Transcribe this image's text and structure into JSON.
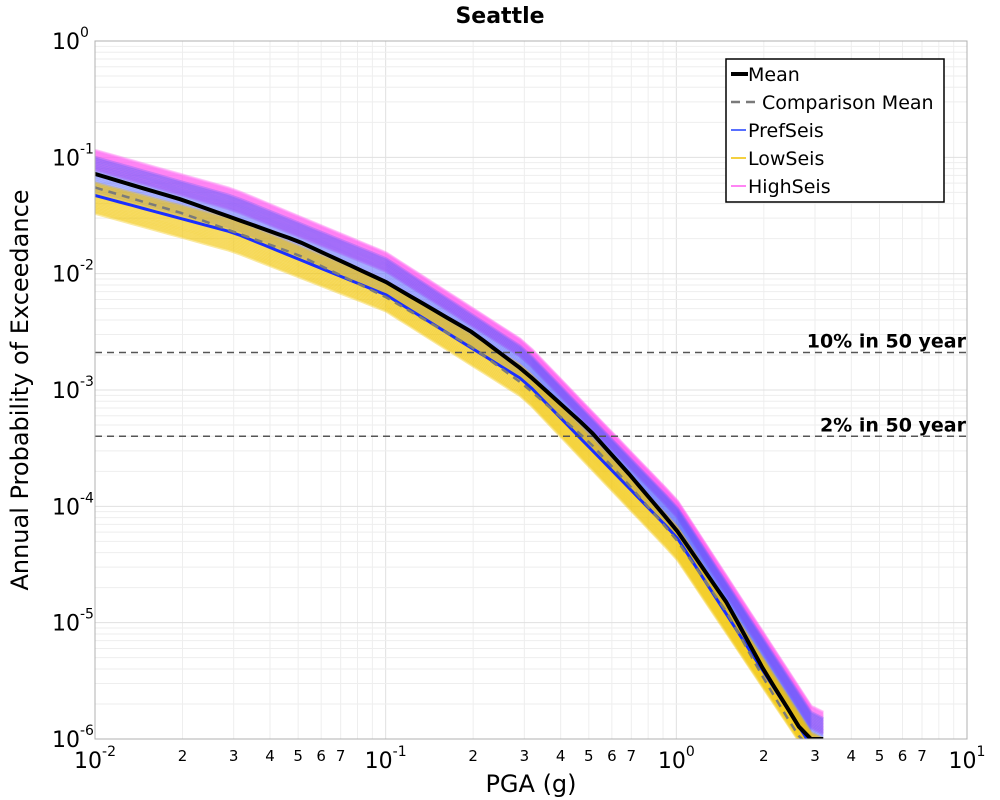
{
  "chart_data": {
    "type": "line",
    "title": "Seattle",
    "xlabel": "PGA (g)",
    "ylabel": "Annual Probability of Exceedance",
    "xscale": "log",
    "yscale": "log",
    "xlim": [
      0.01,
      10
    ],
    "ylim": [
      1e-06,
      1
    ],
    "grid": true,
    "legend_position": "top-right",
    "x_ticks": [
      {
        "base": "10",
        "exp": "-2"
      },
      {
        "base": "10",
        "exp": "-1"
      },
      {
        "base": "10",
        "exp": "0"
      },
      {
        "base": "10",
        "exp": "1"
      }
    ],
    "x_minor_labels": [
      "2",
      "3",
      "4",
      "5",
      "6",
      "7"
    ],
    "y_ticks": [
      {
        "base": "10",
        "exp": "0"
      },
      {
        "base": "10",
        "exp": "-1"
      },
      {
        "base": "10",
        "exp": "-2"
      },
      {
        "base": "10",
        "exp": "-3"
      },
      {
        "base": "10",
        "exp": "-4"
      },
      {
        "base": "10",
        "exp": "-5"
      },
      {
        "base": "10",
        "exp": "-6"
      }
    ],
    "reference_lines": [
      {
        "label": "10% in 50 year",
        "y": 0.0021
      },
      {
        "label": "2% in 50 year",
        "y": 0.0004
      }
    ],
    "series": [
      {
        "name": "Mean",
        "style": "solid",
        "color": "#000000",
        "x": [
          0.01,
          0.02,
          0.05,
          0.1,
          0.2,
          0.3,
          0.5,
          0.7,
          1.0,
          1.5,
          2.0,
          2.5,
          2.8
        ],
        "y": [
          0.072,
          0.043,
          0.019,
          0.0085,
          0.0031,
          0.00145,
          0.00046,
          0.00018,
          6.3e-05,
          1.45e-05,
          3.9e-06,
          1.6e-06,
          1e-06
        ]
      },
      {
        "name": "Comparison Mean",
        "style": "dashed",
        "color": "#7a7a7a",
        "x": [
          0.01,
          0.02,
          0.05,
          0.1,
          0.2,
          0.3,
          0.5,
          0.7,
          1.0,
          1.5,
          2.0,
          2.5,
          2.8
        ],
        "y": [
          0.055,
          0.033,
          0.0145,
          0.0063,
          0.0023,
          0.0011,
          0.00036,
          0.000145,
          5.2e-05,
          1.2e-05,
          3.3e-06,
          1.3e-06,
          8.5e-07
        ]
      },
      {
        "name": "PrefSeis",
        "style": "band",
        "color": "#1f3fff"
      },
      {
        "name": "LowSeis",
        "style": "band",
        "color": "#f0c000"
      },
      {
        "name": "HighSeis",
        "style": "band",
        "color": "#ff5cf0"
      }
    ],
    "bands": {
      "HighSeis": {
        "x": [
          0.01,
          0.03,
          0.1,
          0.3,
          1.0,
          3.0
        ],
        "lo": [
          0.078,
          0.035,
          0.0105,
          0.00185,
          8.3e-05,
          1.1e-06
        ],
        "hi": [
          0.115,
          0.053,
          0.0152,
          0.0026,
          0.000115,
          1.7e-06
        ]
      },
      "PrefSeis": {
        "x": [
          0.01,
          0.03,
          0.1,
          0.3,
          1.0,
          3.0
        ],
        "lo": [
          0.05,
          0.024,
          0.0068,
          0.00125,
          5.8e-05,
          8e-07
        ],
        "hi": [
          0.1,
          0.046,
          0.0135,
          0.00225,
          0.0001,
          1.5e-06
        ]
      },
      "LowSeis": {
        "x": [
          0.01,
          0.03,
          0.1,
          0.3,
          1.0,
          3.0
        ],
        "lo": [
          0.033,
          0.0155,
          0.0048,
          0.00085,
          3.6e-05,
          6e-07
        ],
        "hi": [
          0.06,
          0.029,
          0.0085,
          0.00155,
          6.8e-05,
          1e-06
        ]
      },
      "PrefSeisLine": {
        "x": [
          0.01,
          0.03,
          0.1,
          0.3,
          1.0,
          3.0
        ],
        "y": [
          0.047,
          0.0225,
          0.0066,
          0.0012,
          5.5e-05,
          7.8e-07
        ]
      }
    }
  }
}
